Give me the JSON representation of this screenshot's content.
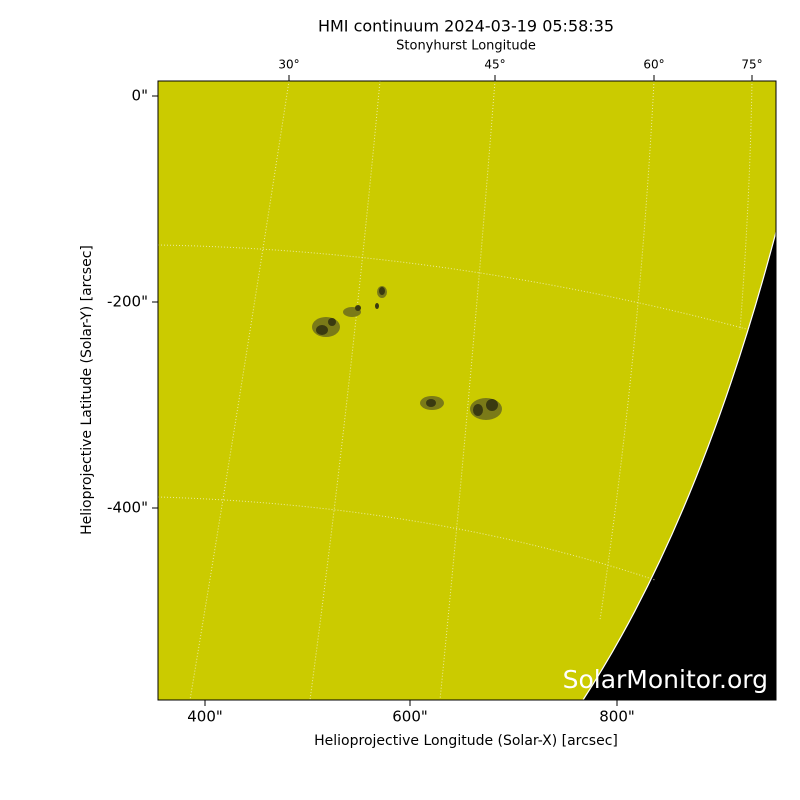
{
  "title": "HMI continuum 2024-03-19 05:58:35",
  "top_axis": {
    "label": "Stonyhurst Longitude",
    "ticks": [
      "30°",
      "45°",
      "60°",
      "75°"
    ]
  },
  "x_axis": {
    "label": "Helioprojective Longitude (Solar-X) [arcsec]",
    "ticks": [
      "400\"",
      "600\"",
      "800\""
    ]
  },
  "y_axis": {
    "label": "Helioprojective Latitude (Solar-Y) [arcsec]",
    "ticks": [
      "0\"",
      "-200\"",
      "-400\""
    ]
  },
  "watermark": "SolarMonitor.org"
}
